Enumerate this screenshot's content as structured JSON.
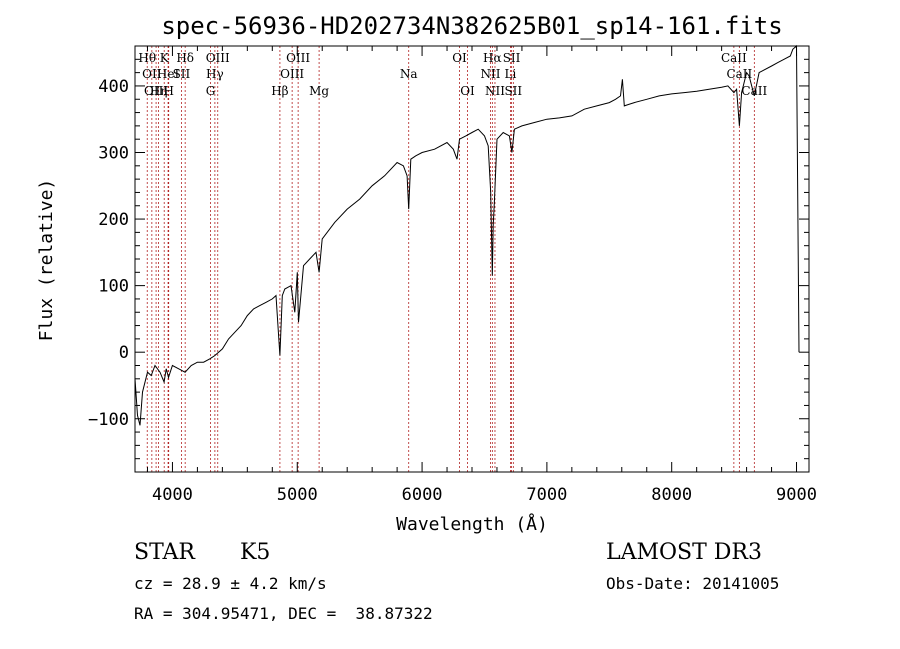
{
  "chart_data": {
    "type": "line",
    "title": "spec-56936-HD202734N382625B01_sp14-161.fits",
    "xlabel": "Wavelength (Å)",
    "ylabel": "Flux (relative)",
    "xlim": [
      3700,
      9100
    ],
    "ylim": [
      -180,
      460
    ],
    "xticks": [
      4000,
      5000,
      6000,
      7000,
      8000,
      9000
    ],
    "yticks": [
      -100,
      0,
      100,
      200,
      300,
      400
    ],
    "grid": false,
    "legend": "none",
    "series": [
      {
        "name": "spectrum",
        "x": [
          3700,
          3720,
          3740,
          3760,
          3780,
          3800,
          3830,
          3860,
          3900,
          3933,
          3950,
          3968,
          4000,
          4050,
          4101,
          4150,
          4200,
          4250,
          4300,
          4340,
          4400,
          4450,
          4500,
          4550,
          4600,
          4650,
          4700,
          4750,
          4800,
          4830,
          4861,
          4880,
          4900,
          4950,
          4980,
          5000,
          5010,
          5050,
          5100,
          5150,
          5175,
          5200,
          5300,
          5400,
          5500,
          5600,
          5700,
          5800,
          5850,
          5880,
          5893,
          5910,
          5950,
          6000,
          6100,
          6200,
          6250,
          6280,
          6300,
          6350,
          6400,
          6450,
          6500,
          6530,
          6550,
          6563,
          6570,
          6580,
          6600,
          6650,
          6700,
          6720,
          6740,
          6800,
          6900,
          7000,
          7100,
          7200,
          7300,
          7400,
          7500,
          7550,
          7590,
          7605,
          7620,
          7650,
          7700,
          7800,
          7900,
          8000,
          8100,
          8200,
          8300,
          8400,
          8450,
          8498,
          8520,
          8542,
          8560,
          8600,
          8620,
          8662,
          8700,
          8800,
          8850,
          8900,
          8950,
          8970,
          9000,
          9020
        ],
        "y": [
          -40,
          -95,
          -110,
          -60,
          -45,
          -30,
          -35,
          -20,
          -30,
          -45,
          -25,
          -38,
          -20,
          -25,
          -30,
          -20,
          -15,
          -15,
          -10,
          -5,
          5,
          20,
          30,
          40,
          55,
          65,
          70,
          75,
          80,
          85,
          -5,
          85,
          95,
          100,
          60,
          120,
          45,
          130,
          140,
          150,
          120,
          170,
          195,
          215,
          230,
          250,
          265,
          285,
          280,
          265,
          215,
          290,
          295,
          300,
          305,
          315,
          305,
          290,
          320,
          325,
          330,
          335,
          325,
          310,
          240,
          115,
          190,
          230,
          320,
          330,
          325,
          300,
          335,
          340,
          345,
          350,
          352,
          355,
          365,
          370,
          375,
          380,
          385,
          410,
          370,
          372,
          375,
          380,
          385,
          388,
          390,
          392,
          395,
          398,
          400,
          390,
          395,
          340,
          390,
          420,
          415,
          385,
          420,
          430,
          435,
          440,
          445,
          455,
          460,
          0
        ]
      }
    ],
    "spectral_lines": [
      {
        "wave": 3798,
        "label": "Hθ",
        "row": 0
      },
      {
        "wave": 3835,
        "label": "OII",
        "row": 1
      },
      {
        "wave": 3869,
        "label": "OIII",
        "row": 2
      },
      {
        "wave": 3889,
        "label": "Hη",
        "row": 2
      },
      {
        "wave": 3934,
        "label": "K",
        "row": 0
      },
      {
        "wave": 3970,
        "label": "H",
        "row": 2
      },
      {
        "wave": 3965,
        "label": "HeI",
        "row": 1
      },
      {
        "wave": 4072,
        "label": "SII",
        "row": 1
      },
      {
        "wave": 4102,
        "label": "Hδ",
        "row": 0
      },
      {
        "wave": 4305,
        "label": "G",
        "row": 2
      },
      {
        "wave": 4340,
        "label": "Hγ",
        "row": 1
      },
      {
        "wave": 4363,
        "label": "OIII",
        "row": 0
      },
      {
        "wave": 4861,
        "label": "Hβ",
        "row": 2
      },
      {
        "wave": 4959,
        "label": "OIII",
        "row": 1
      },
      {
        "wave": 5007,
        "label": "OIII",
        "row": 0
      },
      {
        "wave": 5175,
        "label": "Mg",
        "row": 2
      },
      {
        "wave": 5893,
        "label": "Na",
        "row": 1
      },
      {
        "wave": 6300,
        "label": "OI",
        "row": 0
      },
      {
        "wave": 6364,
        "label": "OI",
        "row": 2
      },
      {
        "wave": 6548,
        "label": "NII",
        "row": 1
      },
      {
        "wave": 6563,
        "label": "Hα",
        "row": 0
      },
      {
        "wave": 6584,
        "label": "NII",
        "row": 2
      },
      {
        "wave": 6708,
        "label": "Li",
        "row": 1
      },
      {
        "wave": 6717,
        "label": "SII",
        "row": 0
      },
      {
        "wave": 6731,
        "label": "SII",
        "row": 2
      },
      {
        "wave": 8498,
        "label": "CaII",
        "row": 0
      },
      {
        "wave": 8542,
        "label": "CaII",
        "row": 1
      },
      {
        "wave": 8662,
        "label": "CaII",
        "row": 2
      }
    ]
  },
  "info": {
    "class_label": "STAR",
    "subclass": "K5",
    "survey": "LAMOST DR3",
    "redshift": "cz = 28.9 ± 4.2 km/s",
    "obs_date": "Obs-Date: 20141005",
    "coords": "RA = 304.95471, DEC =  38.87322"
  },
  "colors": {
    "line_marker": "#b22222",
    "spectrum": "#000000",
    "axes": "#000000",
    "background": "#ffffff"
  }
}
